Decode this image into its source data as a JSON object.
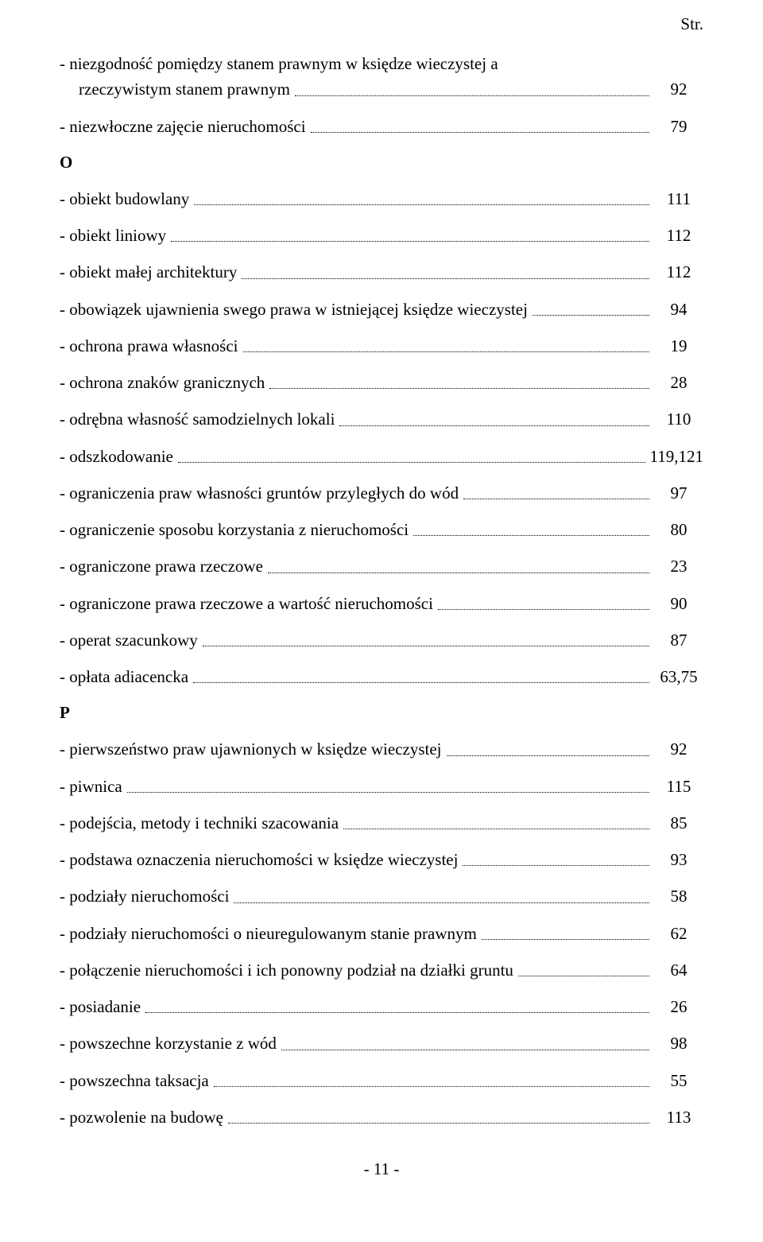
{
  "header": "Str.",
  "entries": [
    {
      "type": "multiline",
      "line1": "- niezgodność pomiędzy stanem prawnym w księdze wieczystej a",
      "line2_prefix": "rzeczywistym stanem prawnym",
      "page": "92"
    },
    {
      "type": "row",
      "label": "- niezwłoczne zajęcie nieruchomości",
      "page": "79"
    },
    {
      "type": "section",
      "label": "O"
    },
    {
      "type": "row",
      "label": "- obiekt budowlany",
      "page": "111"
    },
    {
      "type": "row",
      "label": "- obiekt liniowy",
      "page": "112"
    },
    {
      "type": "row",
      "label": "- obiekt małej architektury",
      "page": "112"
    },
    {
      "type": "row",
      "label": "- obowiązek ujawnienia swego prawa w istniejącej księdze wieczystej",
      "page": "94"
    },
    {
      "type": "row",
      "label": "- ochrona prawa własności",
      "page": "19"
    },
    {
      "type": "row",
      "label": "- ochrona znaków granicznych",
      "page": "28"
    },
    {
      "type": "row",
      "label": "- odrębna własność samodzielnych lokali",
      "page": "110"
    },
    {
      "type": "row",
      "label": "- odszkodowanie",
      "page": "119,121"
    },
    {
      "type": "row",
      "label": "- ograniczenia praw własności gruntów przyległych do wód",
      "page": "97"
    },
    {
      "type": "row",
      "label": "- ograniczenie sposobu korzystania z nieruchomości",
      "page": "80"
    },
    {
      "type": "row",
      "label": "- ograniczone prawa rzeczowe",
      "page": "23"
    },
    {
      "type": "row",
      "label": "- ograniczone prawa rzeczowe a wartość nieruchomości",
      "page": "90"
    },
    {
      "type": "row",
      "label": "- operat szacunkowy",
      "page": "87"
    },
    {
      "type": "row",
      "label": "- opłata adiacencka",
      "page": "63,75"
    },
    {
      "type": "section",
      "label": "P"
    },
    {
      "type": "row",
      "label": "- pierwszeństwo praw ujawnionych w księdze wieczystej",
      "page": "92"
    },
    {
      "type": "row",
      "label": "- piwnica",
      "page": "115"
    },
    {
      "type": "row",
      "label": "- podejścia, metody i techniki szacowania",
      "page": "85"
    },
    {
      "type": "row",
      "label": "- podstawa oznaczenia nieruchomości w księdze wieczystej",
      "page": "93"
    },
    {
      "type": "row",
      "label": "- podziały nieruchomości",
      "page": "58"
    },
    {
      "type": "row",
      "label": "- podziały nieruchomości o nieuregulowanym stanie prawnym",
      "page": "62"
    },
    {
      "type": "row",
      "label": "- połączenie nieruchomości i ich ponowny podział na działki gruntu",
      "page": "64"
    },
    {
      "type": "row",
      "label": "- posiadanie",
      "page": "26"
    },
    {
      "type": "row",
      "label": "- powszechne korzystanie z wód",
      "page": "98"
    },
    {
      "type": "row",
      "label": "- powszechna taksacja",
      "page": "55"
    },
    {
      "type": "row",
      "label": "- pozwolenie na budowę",
      "page": "113"
    }
  ],
  "footer": "- 11 -"
}
